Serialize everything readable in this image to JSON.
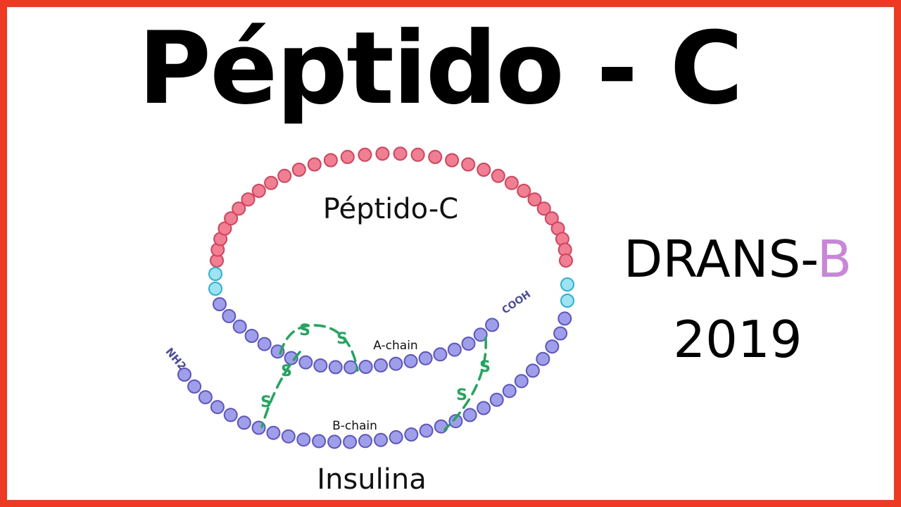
{
  "title": "Péptido - C",
  "brand": {
    "prefix": "DRANS-",
    "accent": "B",
    "accent_color": "#c985d9"
  },
  "year": "2019",
  "border_color": "#ee3a23",
  "diagram": {
    "c_peptide_label": "Péptido-C",
    "a_chain_label": "A-chain",
    "b_chain_label": "B-chain",
    "n_terminus_label": "NH2",
    "c_terminus_label": "COOH",
    "bond_label": "S",
    "molecule_label": "Insulina",
    "colors": {
      "c_peptide": "#ef7f92",
      "c_peptide_stroke": "#d94159",
      "linker": "#9fe3f3",
      "linker_stroke": "#27b4da",
      "chain": "#9e9ee9",
      "chain_stroke": "#5b55c7",
      "bond": "#1fa85c",
      "terminus_text": "#4b4aa4"
    }
  }
}
